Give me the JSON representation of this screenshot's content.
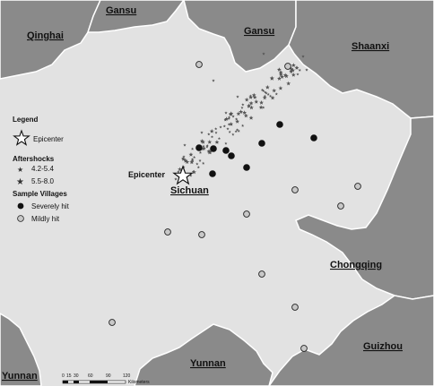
{
  "map": {
    "colors": {
      "sichuan_fill": "#e2e2e2",
      "neighbor_fill": "#8a8a8a",
      "border": "#ffffff",
      "severe": "#111111",
      "mild": "#c8c8c8",
      "aftershock": "#555555"
    },
    "regions": {
      "gansu_nw": "Gansu",
      "qinghai": "Qinghai",
      "gansu_n": "Gansu",
      "shaanxi": "Shaanxi",
      "sichuan": "Sichuan",
      "chongqing": "Chongqing",
      "guizhou": "Guizhou",
      "yunnan_s": "Yunnan",
      "yunnan_sw": "Yunnan"
    },
    "epicenter_label": "Epicenter"
  },
  "legend": {
    "title": "Legend",
    "epicenter": "Epicenter",
    "aftershocks_title": "Aftershocks",
    "aftershock_small": "4.2-5.4",
    "aftershock_large": "5.5-8.0",
    "villages_title": "Sample Villages",
    "severe": "Severely hit",
    "mild": "Mildly hit"
  },
  "scale_bar": {
    "ticks": [
      "0",
      "15",
      "30",
      "60",
      "90",
      "120"
    ],
    "unit": "Kilometers"
  }
}
